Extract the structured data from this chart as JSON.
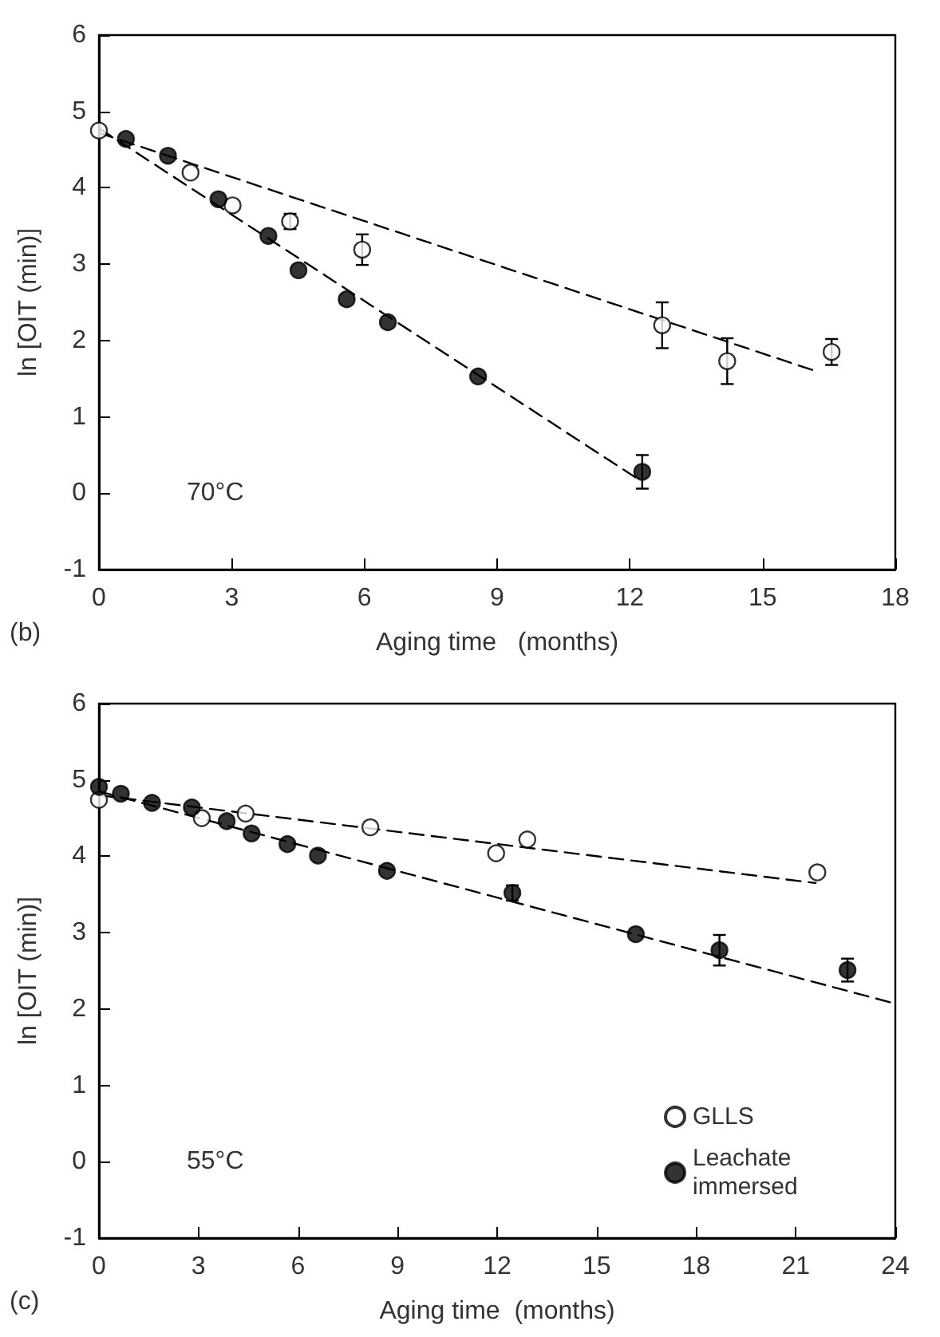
{
  "chart_data": [
    {
      "type": "scatter",
      "xlabel": "Aging time   (months)",
      "ylabel": "ln [OIT (min)]",
      "annotations": [
        "70°C",
        "(b)"
      ],
      "xlim": [
        0,
        18
      ],
      "xticks": [
        0,
        3,
        6,
        9,
        12,
        15,
        18
      ],
      "ylim": [
        -1,
        6
      ],
      "yticks": [
        -1,
        0,
        1,
        2,
        3,
        4,
        5,
        6
      ],
      "grid": false,
      "legend": false,
      "marker": "circle",
      "series": [
        {
          "type": "line",
          "color": "#000000",
          "line_style": "dashed",
          "marker": "none",
          "x": [
            0,
            16.2
          ],
          "values": [
            4.72,
            1.6
          ]
        },
        {
          "type": "line",
          "color": "#000000",
          "line_style": "dashed",
          "marker": "none",
          "x": [
            0,
            12.2
          ],
          "values": [
            4.78,
            0.18
          ]
        },
        {
          "color": "#ffffff",
          "x": [
            0,
            2.07,
            3.02,
            4.32,
            5.95,
            12.73,
            14.2,
            16.56
          ],
          "values": [
            4.75,
            4.2,
            3.77,
            3.56,
            3.19,
            2.2,
            1.73,
            1.85
          ],
          "errors": [
            null,
            null,
            null,
            0.1,
            0.2,
            0.3,
            0.3,
            0.17
          ]
        },
        {
          "color": "#000000",
          "x": [
            0.61,
            1.56,
            2.7,
            3.83,
            4.51,
            5.6,
            6.53,
            8.57,
            12.28
          ],
          "values": [
            4.64,
            4.42,
            3.85,
            3.37,
            2.92,
            2.54,
            2.24,
            1.53,
            0.28
          ],
          "errors": [
            null,
            null,
            null,
            null,
            null,
            null,
            null,
            null,
            0.22
          ]
        }
      ]
    },
    {
      "type": "scatter",
      "xlabel": "Aging time  (months)",
      "ylabel": "ln [OIT (min)]",
      "annotations": [
        "55°C",
        "(c)"
      ],
      "xlim": [
        0,
        24
      ],
      "xticks": [
        0,
        3,
        6,
        9,
        12,
        15,
        18,
        21,
        24
      ],
      "ylim": [
        -1,
        6
      ],
      "yticks": [
        -1,
        0,
        1,
        2,
        3,
        4,
        5,
        6
      ],
      "grid": false,
      "legend": "bottom right",
      "marker": "circle",
      "series": [
        {
          "type": "line",
          "color": "#000000",
          "line_style": "dashed",
          "marker": "none",
          "x": [
            0,
            21.6
          ],
          "values": [
            4.8,
            3.65
          ]
        },
        {
          "type": "line",
          "color": "#000000",
          "line_style": "dashed",
          "marker": "none",
          "x": [
            0,
            24
          ],
          "values": [
            4.85,
            2.07
          ]
        },
        {
          "name": "GLLS",
          "color": "#ffffff",
          "x": [
            0,
            3.1,
            4.42,
            8.18,
            11.97,
            12.91,
            21.65
          ],
          "values": [
            4.74,
            4.5,
            4.56,
            4.38,
            4.04,
            4.22,
            3.79
          ]
        },
        {
          "name": "Leachate immersed",
          "color": "#000000",
          "x": [
            0,
            0.66,
            1.6,
            2.8,
            3.85,
            4.6,
            5.68,
            6.6,
            8.68,
            12.46,
            16.18,
            18.7,
            22.56
          ],
          "values": [
            4.91,
            4.82,
            4.7,
            4.64,
            4.46,
            4.3,
            4.16,
            4.01,
            3.81,
            3.52,
            2.98,
            2.77,
            2.51
          ],
          "errors": [
            null,
            null,
            null,
            null,
            null,
            null,
            null,
            null,
            null,
            0.1,
            null,
            0.2,
            0.15
          ]
        }
      ]
    }
  ]
}
